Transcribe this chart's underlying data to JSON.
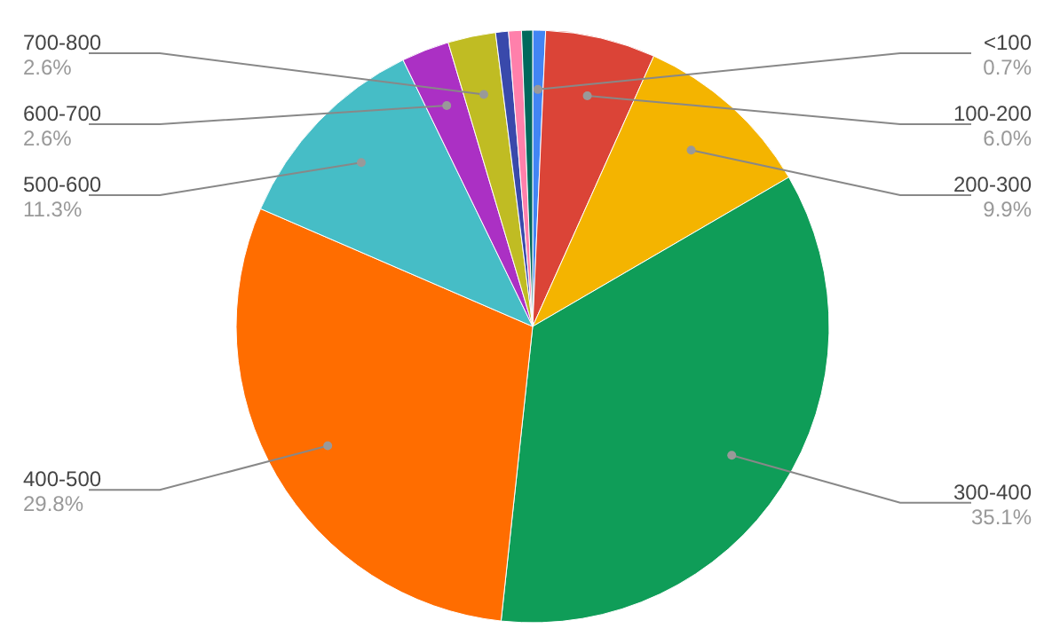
{
  "chart_data": {
    "type": "pie",
    "categories": [
      "<100",
      "100-200",
      "200-300",
      "300-400",
      "400-500",
      "500-600",
      "600-700",
      "700-800",
      null,
      null,
      null
    ],
    "values": [
      0.7,
      6.0,
      9.9,
      35.1,
      29.8,
      11.3,
      2.6,
      2.6,
      0.7,
      0.7,
      0.6
    ],
    "value_labels": [
      "0.7%",
      "6.0%",
      "9.9%",
      "35.1%",
      "29.8%",
      "11.3%",
      "2.6%",
      "2.6%",
      null,
      null,
      null
    ],
    "colors": [
      "#4285f4",
      "#db4437",
      "#f4b400",
      "#0f9d58",
      "#ff6d00",
      "#46bdc6",
      "#ab30c4",
      "#c0bc23",
      "#3949ab",
      "#ff80ab",
      "#00695c"
    ]
  }
}
